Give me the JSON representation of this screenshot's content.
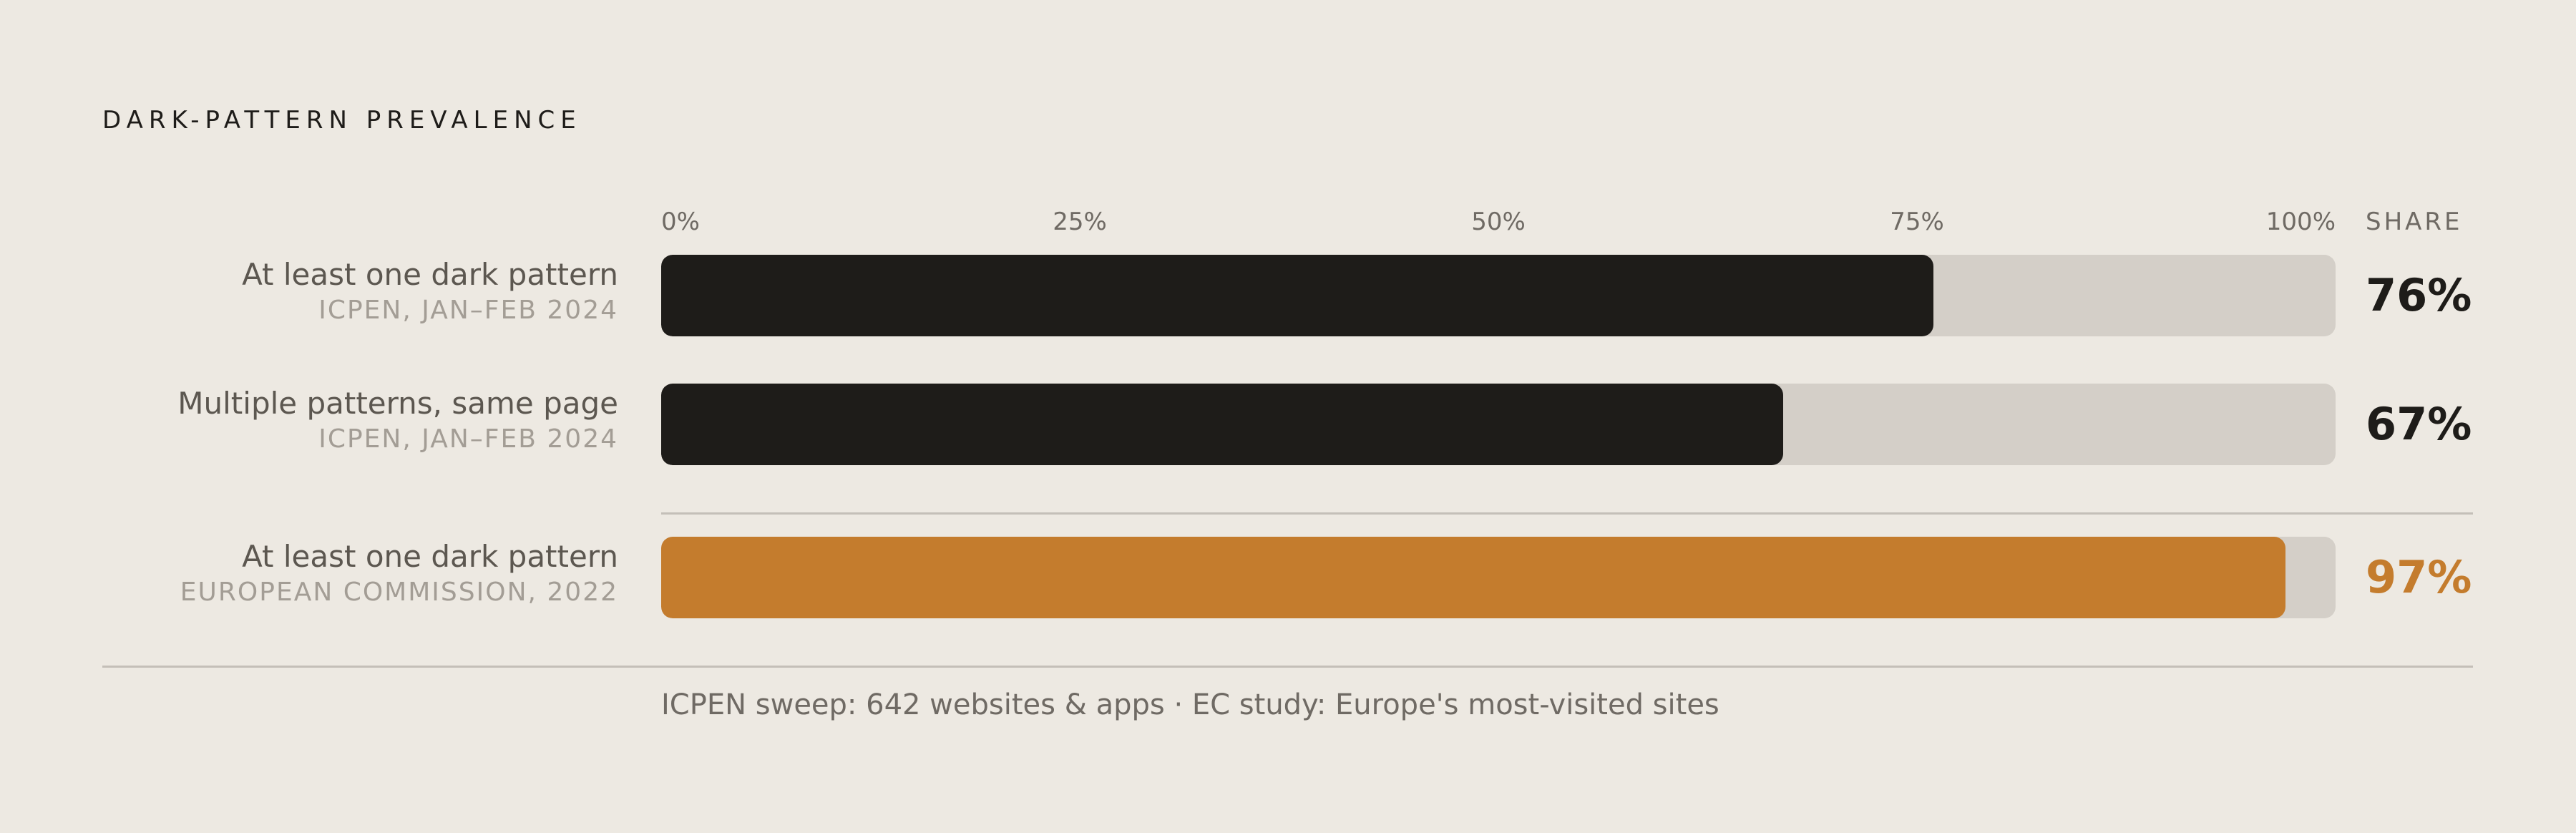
{
  "title": "DARK-PATTERN PREVALENCE",
  "colors": {
    "background": "#EDE9E2",
    "bar_default": "#1E1C19",
    "bar_highlight": "#C47C2D",
    "track": "#D4CFC8"
  },
  "chart_data": {
    "type": "bar",
    "orientation": "horizontal",
    "title": "DARK-PATTERN PREVALENCE",
    "value_header": "SHARE",
    "xlim": [
      0,
      100
    ],
    "tick_values": [
      0,
      25,
      50,
      75,
      100
    ],
    "tick_labels": [
      "0%",
      "25%",
      "50%",
      "75%",
      "100%"
    ],
    "grid": false,
    "rows": [
      {
        "label": "At least one dark pattern",
        "source": "ICPEN, JAN–FEB 2024",
        "value": 76,
        "value_label": "76%",
        "highlight": false
      },
      {
        "label": "Multiple patterns, same page",
        "source": "ICPEN, JAN–FEB 2024",
        "value": 67,
        "value_label": "67%",
        "highlight": false
      },
      {
        "label": "At least one dark pattern",
        "source": "EUROPEAN COMMISSION, 2022",
        "value": 97,
        "value_label": "97%",
        "highlight": true
      }
    ]
  },
  "footnote": "ICPEN sweep: 642 websites & apps  ·  EC study: Europe's most-visited sites"
}
